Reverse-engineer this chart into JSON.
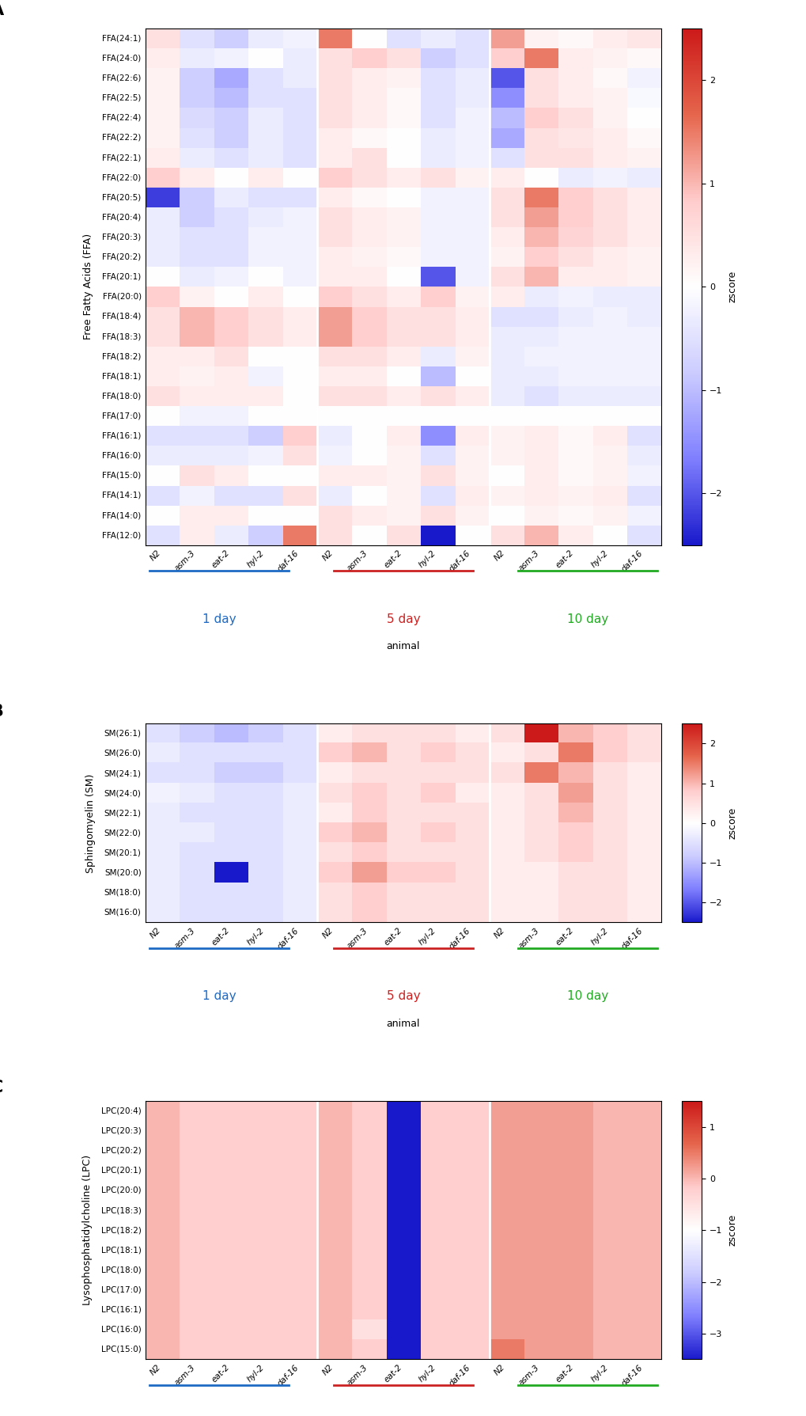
{
  "ffa_rows": [
    "FFA(24:1)",
    "FFA(24:0)",
    "FFA(22:6)",
    "FFA(22:5)",
    "FFA(22:4)",
    "FFA(22:2)",
    "FFA(22:1)",
    "FFA(22:0)",
    "FFA(20:5)",
    "FFA(20:4)",
    "FFA(20:3)",
    "FFA(20:2)",
    "FFA(20:1)",
    "FFA(20:0)",
    "FFA(18:4)",
    "FFA(18:3)",
    "FFA(18:2)",
    "FFA(18:1)",
    "FFA(18:0)",
    "FFA(17:0)",
    "FFA(16:1)",
    "FFA(16:0)",
    "FFA(15:0)",
    "FFA(14:1)",
    "FFA(14:0)",
    "FFA(12:0)"
  ],
  "sm_rows": [
    "SM(26:1)",
    "SM(26:0)",
    "SM(24:1)",
    "SM(24:0)",
    "SM(22:1)",
    "SM(22:0)",
    "SM(20:1)",
    "SM(20:0)",
    "SM(18:0)",
    "SM(16:0)"
  ],
  "lpc_rows": [
    "LPC(20:4)",
    "LPC(20:3)",
    "LPC(20:2)",
    "LPC(20:1)",
    "LPC(20:0)",
    "LPC(18:3)",
    "LPC(18:2)",
    "LPC(18:1)",
    "LPC(18:0)",
    "LPC(17:0)",
    "LPC(16:1)",
    "LPC(16:0)",
    "LPC(15:0)"
  ],
  "col_labels": [
    "N2",
    "asm-3",
    "eat-2",
    "hyl-2",
    "daf-16",
    "N2",
    "asm-3",
    "eat-2",
    "hyl-2",
    "daf-16",
    "N2",
    "asm-3",
    "eat-2",
    "hyl-2",
    "daf-16"
  ],
  "day_labels": [
    "1 day",
    "5 day",
    "10 day"
  ],
  "day_colors": [
    "#1e6ac4",
    "#cc2222",
    "#22aa22"
  ],
  "xlabel": "animal",
  "ffa_data": [
    [
      0.5,
      -0.5,
      -0.8,
      -0.3,
      -0.2,
      1.5,
      0.0,
      -0.5,
      -0.3,
      -0.5,
      1.2,
      0.2,
      0.1,
      0.3,
      0.4
    ],
    [
      0.3,
      -0.3,
      -0.2,
      0.0,
      -0.3,
      0.5,
      0.8,
      0.5,
      -0.8,
      -0.5,
      0.8,
      1.5,
      0.3,
      0.2,
      0.1
    ],
    [
      0.2,
      -0.8,
      -1.2,
      -0.5,
      -0.3,
      0.5,
      0.3,
      0.2,
      -0.5,
      -0.3,
      -2.0,
      0.5,
      0.3,
      0.1,
      -0.2
    ],
    [
      0.2,
      -0.8,
      -1.0,
      -0.5,
      -0.5,
      0.5,
      0.3,
      0.1,
      -0.5,
      -0.3,
      -1.5,
      0.5,
      0.3,
      0.2,
      -0.1
    ],
    [
      0.2,
      -0.6,
      -0.8,
      -0.3,
      -0.5,
      0.5,
      0.3,
      0.1,
      -0.5,
      -0.2,
      -1.0,
      0.8,
      0.5,
      0.2,
      0.0
    ],
    [
      0.2,
      -0.5,
      -0.8,
      -0.3,
      -0.5,
      0.3,
      0.1,
      0.0,
      -0.3,
      -0.2,
      -1.2,
      0.5,
      0.4,
      0.3,
      0.1
    ],
    [
      0.3,
      -0.3,
      -0.5,
      -0.3,
      -0.5,
      0.3,
      0.5,
      0.0,
      -0.3,
      -0.2,
      -0.5,
      0.5,
      0.5,
      0.3,
      0.2
    ],
    [
      0.8,
      0.3,
      0.0,
      0.3,
      0.0,
      0.8,
      0.5,
      0.3,
      0.5,
      0.2,
      0.3,
      0.0,
      -0.3,
      -0.2,
      -0.3
    ],
    [
      -2.2,
      -0.8,
      -0.3,
      -0.5,
      -0.5,
      0.3,
      0.1,
      0.0,
      -0.2,
      -0.2,
      0.5,
      1.5,
      0.8,
      0.5,
      0.3
    ],
    [
      -0.3,
      -0.8,
      -0.5,
      -0.3,
      -0.2,
      0.5,
      0.3,
      0.2,
      -0.2,
      -0.2,
      0.5,
      1.2,
      0.8,
      0.5,
      0.3
    ],
    [
      -0.3,
      -0.5,
      -0.5,
      -0.2,
      -0.2,
      0.5,
      0.3,
      0.2,
      -0.2,
      -0.2,
      0.3,
      1.0,
      0.7,
      0.5,
      0.3
    ],
    [
      -0.3,
      -0.5,
      -0.5,
      -0.2,
      -0.2,
      0.3,
      0.2,
      0.1,
      -0.2,
      -0.2,
      0.2,
      0.8,
      0.5,
      0.3,
      0.2
    ],
    [
      0.0,
      -0.3,
      -0.2,
      0.0,
      -0.2,
      0.3,
      0.3,
      0.0,
      -2.0,
      -0.2,
      0.5,
      1.0,
      0.3,
      0.3,
      0.2
    ],
    [
      0.8,
      0.2,
      0.0,
      0.3,
      0.0,
      0.8,
      0.5,
      0.3,
      0.8,
      0.2,
      0.3,
      -0.3,
      -0.2,
      -0.3,
      -0.3
    ],
    [
      0.5,
      1.0,
      0.8,
      0.5,
      0.3,
      1.2,
      0.8,
      0.5,
      0.5,
      0.3,
      -0.5,
      -0.5,
      -0.3,
      -0.2,
      -0.3
    ],
    [
      0.5,
      1.0,
      0.8,
      0.5,
      0.3,
      1.2,
      0.8,
      0.5,
      0.5,
      0.3,
      -0.3,
      -0.3,
      -0.2,
      -0.2,
      -0.2
    ],
    [
      0.3,
      0.3,
      0.5,
      0.0,
      0.0,
      0.5,
      0.5,
      0.3,
      -0.3,
      0.2,
      -0.3,
      -0.2,
      -0.2,
      -0.2,
      -0.2
    ],
    [
      0.3,
      0.2,
      0.3,
      -0.2,
      0.0,
      0.3,
      0.3,
      0.0,
      -1.0,
      0.0,
      -0.3,
      -0.3,
      -0.2,
      -0.2,
      -0.2
    ],
    [
      0.5,
      0.3,
      0.3,
      0.3,
      0.0,
      0.5,
      0.5,
      0.3,
      0.5,
      0.3,
      -0.3,
      -0.5,
      -0.3,
      -0.3,
      -0.3
    ],
    [
      0.0,
      -0.2,
      -0.2,
      0.0,
      0.0,
      0.0,
      0.0,
      0.0,
      0.0,
      0.0,
      0.0,
      0.0,
      0.0,
      0.0,
      0.0
    ],
    [
      -0.5,
      -0.5,
      -0.5,
      -0.8,
      0.8,
      -0.3,
      0.0,
      0.3,
      -1.5,
      0.3,
      0.2,
      0.3,
      0.1,
      0.3,
      -0.5
    ],
    [
      -0.3,
      -0.3,
      -0.3,
      -0.2,
      0.5,
      -0.2,
      0.0,
      0.2,
      -0.5,
      0.2,
      0.2,
      0.3,
      0.1,
      0.2,
      -0.3
    ],
    [
      0.0,
      0.5,
      0.3,
      0.0,
      0.0,
      0.3,
      0.3,
      0.2,
      0.5,
      0.2,
      0.0,
      0.3,
      0.1,
      0.2,
      -0.2
    ],
    [
      -0.5,
      -0.2,
      -0.5,
      -0.5,
      0.5,
      -0.3,
      0.0,
      0.2,
      -0.5,
      0.3,
      0.2,
      0.3,
      0.2,
      0.3,
      -0.5
    ],
    [
      0.0,
      0.3,
      0.3,
      0.0,
      0.0,
      0.5,
      0.3,
      0.2,
      0.5,
      0.2,
      0.0,
      0.2,
      0.1,
      0.2,
      -0.2
    ],
    [
      -0.5,
      0.3,
      -0.3,
      -0.8,
      1.5,
      0.5,
      0.0,
      0.5,
      -2.5,
      0.0,
      0.5,
      1.0,
      0.3,
      0.0,
      -0.5
    ]
  ],
  "sm_data": [
    [
      -0.5,
      -0.8,
      -1.0,
      -0.8,
      -0.5,
      0.3,
      0.5,
      0.5,
      0.5,
      0.3,
      0.5,
      2.5,
      1.0,
      0.8,
      0.5
    ],
    [
      -0.3,
      -0.5,
      -0.5,
      -0.5,
      -0.5,
      0.8,
      1.0,
      0.5,
      0.8,
      0.5,
      0.3,
      0.5,
      1.5,
      0.8,
      0.5
    ],
    [
      -0.5,
      -0.5,
      -0.8,
      -0.8,
      -0.5,
      0.3,
      0.5,
      0.5,
      0.5,
      0.5,
      0.5,
      1.5,
      1.0,
      0.5,
      0.3
    ],
    [
      -0.2,
      -0.3,
      -0.5,
      -0.5,
      -0.3,
      0.5,
      0.8,
      0.5,
      0.8,
      0.3,
      0.3,
      0.5,
      1.2,
      0.5,
      0.3
    ],
    [
      -0.3,
      -0.5,
      -0.5,
      -0.5,
      -0.3,
      0.3,
      0.8,
      0.5,
      0.5,
      0.5,
      0.3,
      0.5,
      1.0,
      0.5,
      0.3
    ],
    [
      -0.3,
      -0.3,
      -0.5,
      -0.5,
      -0.3,
      0.8,
      1.0,
      0.5,
      0.8,
      0.5,
      0.3,
      0.5,
      0.8,
      0.5,
      0.3
    ],
    [
      -0.3,
      -0.5,
      -0.5,
      -0.5,
      -0.3,
      0.5,
      0.8,
      0.5,
      0.5,
      0.5,
      0.3,
      0.5,
      0.8,
      0.5,
      0.3
    ],
    [
      -0.3,
      -0.5,
      -2.5,
      -0.5,
      -0.3,
      0.8,
      1.2,
      0.8,
      0.8,
      0.5,
      0.3,
      0.3,
      0.5,
      0.5,
      0.3
    ],
    [
      -0.3,
      -0.5,
      -0.5,
      -0.5,
      -0.3,
      0.5,
      0.8,
      0.5,
      0.5,
      0.5,
      0.3,
      0.3,
      0.5,
      0.5,
      0.3
    ],
    [
      -0.3,
      -0.5,
      -0.5,
      -0.5,
      -0.3,
      0.5,
      0.8,
      0.5,
      0.5,
      0.5,
      0.3,
      0.3,
      0.5,
      0.5,
      0.3
    ]
  ],
  "lpc_data": [
    [
      0.0,
      -0.2,
      -0.2,
      -0.2,
      -0.2,
      0.0,
      -0.2,
      -3.5,
      -0.2,
      -0.2,
      0.2,
      0.2,
      0.2,
      0.0,
      0.0
    ],
    [
      0.0,
      -0.2,
      -0.2,
      -0.2,
      -0.2,
      0.0,
      -0.2,
      -3.5,
      -0.2,
      -0.2,
      0.2,
      0.2,
      0.2,
      0.0,
      0.0
    ],
    [
      0.0,
      -0.2,
      -0.2,
      -0.2,
      -0.2,
      0.0,
      -0.2,
      -3.5,
      -0.2,
      -0.2,
      0.2,
      0.2,
      0.2,
      0.0,
      0.0
    ],
    [
      0.0,
      -0.2,
      -0.2,
      -0.2,
      -0.2,
      0.0,
      -0.2,
      -3.5,
      -0.2,
      -0.2,
      0.2,
      0.2,
      0.2,
      0.0,
      0.0
    ],
    [
      0.0,
      -0.2,
      -0.2,
      -0.2,
      -0.2,
      0.0,
      -0.2,
      -3.5,
      -0.2,
      -0.2,
      0.2,
      0.2,
      0.2,
      0.0,
      0.0
    ],
    [
      0.0,
      -0.2,
      -0.2,
      -0.2,
      -0.2,
      0.0,
      -0.2,
      -3.5,
      -0.2,
      -0.2,
      0.2,
      0.2,
      0.2,
      0.0,
      0.0
    ],
    [
      0.0,
      -0.2,
      -0.2,
      -0.2,
      -0.2,
      0.0,
      -0.2,
      -3.5,
      -0.2,
      -0.2,
      0.2,
      0.2,
      0.2,
      0.0,
      0.0
    ],
    [
      0.0,
      -0.2,
      -0.2,
      -0.2,
      -0.2,
      0.0,
      -0.2,
      -3.5,
      -0.2,
      -0.2,
      0.2,
      0.2,
      0.2,
      0.0,
      0.0
    ],
    [
      0.0,
      -0.2,
      -0.2,
      -0.2,
      -0.2,
      0.0,
      -0.2,
      -3.5,
      -0.2,
      -0.2,
      0.2,
      0.2,
      0.2,
      0.0,
      0.0
    ],
    [
      0.0,
      -0.2,
      -0.2,
      -0.2,
      -0.2,
      0.0,
      -0.2,
      -3.5,
      -0.2,
      -0.2,
      0.2,
      0.2,
      0.2,
      0.0,
      0.0
    ],
    [
      0.0,
      -0.2,
      -0.2,
      -0.2,
      -0.2,
      0.0,
      -0.2,
      -3.5,
      -0.2,
      -0.2,
      0.2,
      0.2,
      0.2,
      0.0,
      0.0
    ],
    [
      0.0,
      -0.2,
      -0.2,
      -0.2,
      -0.2,
      0.0,
      -0.5,
      -3.5,
      -0.2,
      -0.2,
      0.2,
      0.2,
      0.2,
      0.0,
      0.0
    ],
    [
      0.0,
      -0.2,
      -0.2,
      -0.2,
      -0.2,
      0.0,
      -0.2,
      -3.5,
      -0.2,
      -0.2,
      0.5,
      0.2,
      0.2,
      0.0,
      0.0
    ]
  ],
  "ffa_vmin": -2.5,
  "ffa_vmax": 2.5,
  "sm_vmin": -2.5,
  "sm_vmax": 2.5,
  "lpc_vmin": -3.5,
  "lpc_vmax": 1.5,
  "panel_labels": [
    "A",
    "B",
    "C"
  ],
  "section_labels": [
    "Free Fatty Acids (FFA)",
    "Sphingomyelin (SM)",
    "Lysophosphatidylcholine (LPC)"
  ]
}
